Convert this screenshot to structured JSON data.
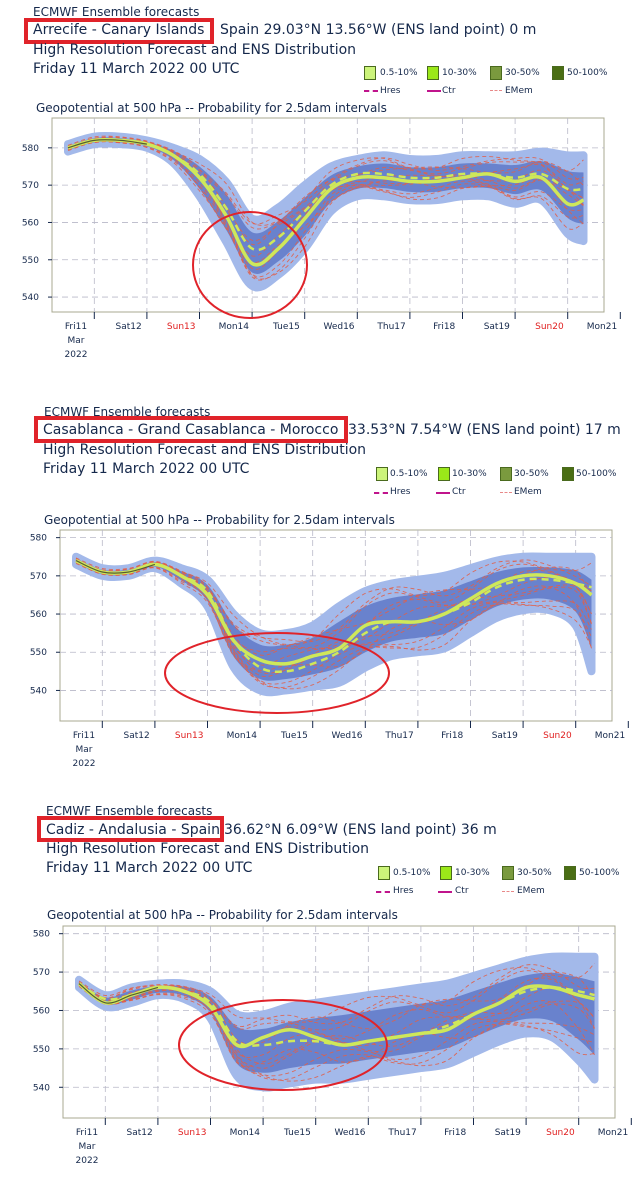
{
  "header_line": "ECMWF Ensemble forecasts",
  "subtitle_line": "High Resolution Forecast and ENS Distribution",
  "date_line": "Friday 11 March 2022 00 UTC",
  "chart_title": "Geopotential at 500 hPa -- Probability for 2.5dam intervals",
  "legend": {
    "bins": [
      {
        "label": "0.5-10%",
        "color": "#ccf47a"
      },
      {
        "label": "10-30%",
        "color": "#9be819"
      },
      {
        "label": "30-50%",
        "color": "#7a9a3e"
      },
      {
        "label": "50-100%",
        "color": "#4a6e14"
      }
    ],
    "lines": [
      {
        "label": "Hres",
        "color": "#c0148c",
        "style": "dashed"
      },
      {
        "label": "Ctr",
        "color": "#c0148c",
        "style": "solid"
      },
      {
        "label": "EMem",
        "color": "#e88888",
        "style": "dashed"
      }
    ]
  },
  "colors": {
    "highlight": "#e0232a",
    "ens_envelope": "#a3b9ea",
    "ens_core": "#5f78c8",
    "ens_member": "#e0604a",
    "hres": "#cfe85a",
    "ctr": "#222222",
    "weekend": "#e02020",
    "grid": "#b8b8c8"
  },
  "panels": [
    {
      "location": "Arrecife - Canary Islands",
      "coords": "Spain 29.03°N 13.56°W (ENS land point) 0 m",
      "chart_data": {
        "type": "line",
        "title": "Geopotential at 500 hPa -- Probability for 2.5dam intervals",
        "ylim": [
          536,
          588
        ],
        "yticks": [
          540,
          550,
          560,
          570,
          580
        ],
        "x_tick_labels": [
          "Fri11",
          "Sat12",
          "Sun13",
          "Mon14",
          "Tue15",
          "Wed16",
          "Thu17",
          "Fri18",
          "Sat19",
          "Sun20",
          "Mon21"
        ],
        "x_sub_labels": [
          "Mar",
          "2022"
        ],
        "weekend_ticks": [
          "Sun13",
          "Sun20"
        ],
        "x": [
          0,
          0.5,
          1,
          1.5,
          2,
          2.5,
          3,
          3.5,
          4,
          4.5,
          5,
          5.5,
          6,
          6.5,
          7,
          7.5,
          8,
          8.5,
          9,
          9.5,
          9.8
        ],
        "series": [
          {
            "name": "Hres",
            "values": [
              580,
              582,
              582,
              581,
              578,
              572,
              562,
              549,
              553,
              561,
              569,
              572,
              572,
              571,
              571,
              572,
              573,
              571,
              572,
              565,
              566
            ]
          },
          {
            "name": "EMem",
            "values": [
              580,
              582,
              582,
              581,
              578,
              573,
              564,
              553,
              556,
              563,
              570,
              573,
              573,
              572,
              572,
              573,
              573,
              572,
              573,
              569,
              569
            ]
          }
        ],
        "spread": {
          "upper": [
            581,
            583,
            583,
            582,
            580,
            577,
            571,
            561,
            564,
            570,
            575,
            577,
            578,
            577,
            577,
            578,
            578,
            578,
            579,
            578,
            578
          ],
          "lower": [
            579,
            581,
            581,
            580,
            576,
            567,
            555,
            543,
            546,
            553,
            563,
            567,
            567,
            566,
            566,
            567,
            567,
            565,
            566,
            557,
            555
          ]
        },
        "grid": true
      }
    },
    {
      "location": "Casablanca - Grand Casablanca - Morocco",
      "coords": "33.53°N 7.54°W (ENS land point) 17 m",
      "chart_data": {
        "type": "line",
        "title": "Geopotential at 500 hPa -- Probability for 2.5dam intervals",
        "ylim": [
          532,
          582
        ],
        "yticks": [
          540,
          550,
          560,
          570,
          580
        ],
        "x_tick_labels": [
          "Fri11",
          "Sat12",
          "Sun13",
          "Mon14",
          "Tue15",
          "Wed16",
          "Thu17",
          "Fri18",
          "Sat19",
          "Sun20",
          "Mon21"
        ],
        "x_sub_labels": [
          "Mar",
          "2022"
        ],
        "weekend_ticks": [
          "Sun13",
          "Sun20"
        ],
        "x": [
          0,
          0.5,
          1,
          1.5,
          2,
          2.5,
          3,
          3.5,
          4,
          4.5,
          5,
          5.5,
          6,
          6.5,
          7,
          7.5,
          8,
          8.5,
          9,
          9.5,
          9.8
        ],
        "series": [
          {
            "name": "Hres",
            "values": [
              574,
              571,
              571,
              573,
              570,
              565,
              553,
              548,
              547,
              549,
              551,
              557,
              558,
              558,
              560,
              564,
              568,
              570,
              570,
              568,
              565
            ]
          },
          {
            "name": "EMem",
            "values": [
              574,
              571,
              571,
              573,
              570,
              566,
              553,
              546,
              545,
              547,
              550,
              555,
              558,
              558,
              560,
              563,
              567,
              569,
              569,
              568,
              567
            ]
          }
        ],
        "spread": {
          "upper": [
            575,
            572,
            572,
            574,
            572,
            569,
            560,
            555,
            555,
            557,
            562,
            566,
            568,
            569,
            570,
            572,
            574,
            575,
            575,
            575,
            575
          ],
          "lower": [
            573,
            570,
            570,
            572,
            568,
            562,
            546,
            540,
            540,
            541,
            542,
            546,
            549,
            550,
            551,
            555,
            559,
            561,
            561,
            557,
            545
          ]
        },
        "grid": true
      }
    },
    {
      "location": "Cadiz - Andalusia - Spain",
      "coords": "36.62°N 6.09°W (ENS land point) 36 m",
      "chart_data": {
        "type": "line",
        "title": "Geopotential at 500 hPa -- Probability for 2.5dam intervals",
        "ylim": [
          532,
          582
        ],
        "yticks": [
          540,
          550,
          560,
          570,
          580
        ],
        "x_tick_labels": [
          "Fri11",
          "Sat12",
          "Sun13",
          "Mon14",
          "Tue15",
          "Wed16",
          "Thu17",
          "Fri18",
          "Sat19",
          "Sun20",
          "Mon21"
        ],
        "x_sub_labels": [
          "Mar",
          "2022"
        ],
        "weekend_ticks": [
          "Sun13",
          "Sun20"
        ],
        "x": [
          0,
          0.5,
          1,
          1.5,
          2,
          2.5,
          3,
          3.5,
          4,
          4.5,
          5,
          5.5,
          6,
          6.5,
          7,
          7.5,
          8,
          8.5,
          9,
          9.5,
          9.8
        ],
        "series": [
          {
            "name": "Hres",
            "values": [
              567,
              562,
              564,
              566,
              565,
              561,
              551,
              553,
              555,
              553,
              551,
              552,
              553,
              554,
              555,
              559,
              562,
              566,
              566,
              564,
              563
            ]
          },
          {
            "name": "EMem",
            "values": [
              567,
              563,
              564,
              566,
              565,
              562,
              552,
              551,
              552,
              552,
              551,
              552,
              553,
              554,
              556,
              559,
              562,
              565,
              566,
              565,
              564
            ]
          }
        ],
        "spread": {
          "upper": [
            568,
            564,
            566,
            567,
            567,
            565,
            559,
            559,
            561,
            562,
            563,
            564,
            565,
            566,
            567,
            569,
            571,
            573,
            574,
            574,
            574
          ],
          "lower": [
            566,
            561,
            562,
            564,
            563,
            558,
            543,
            540,
            541,
            542,
            542,
            543,
            544,
            545,
            546,
            549,
            552,
            554,
            553,
            547,
            542
          ]
        },
        "grid": true
      }
    }
  ]
}
